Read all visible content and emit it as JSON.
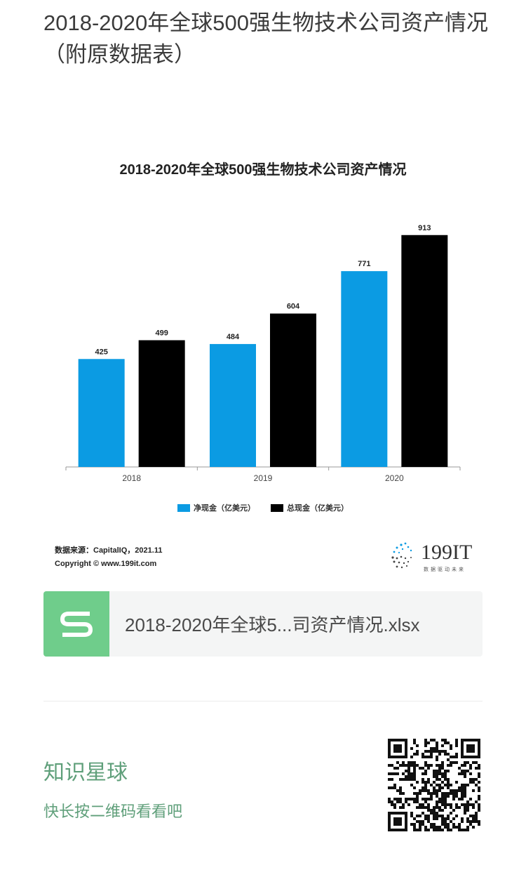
{
  "article": {
    "title": "2018-2020年全球500强生物技术公司资产情况（附原数据表）"
  },
  "chart_data": {
    "type": "bar",
    "title": "2018-2020年全球500强生物技术公司资产情况",
    "categories": [
      "2018",
      "2019",
      "2020"
    ],
    "series": [
      {
        "name": "净现金（亿美元）",
        "values": [
          425,
          484,
          771
        ],
        "color": "#0b9be3"
      },
      {
        "name": "总现金（亿美元）",
        "values": [
          499,
          604,
          913
        ],
        "color": "#000000"
      }
    ],
    "ylim": [
      0,
      940
    ],
    "grid": false,
    "legend_position": "bottom"
  },
  "source": {
    "line1": "数据来源：CapitalIQ，2021.11",
    "line2": "Copyright © www.199it.com"
  },
  "logo": {
    "text": "199IT",
    "tagline": "数据驱动未来"
  },
  "file": {
    "name": "2018-2020年全球5...司资产情况.xlsx"
  },
  "planet": {
    "name": "知识星球",
    "hint": "快长按二维码看看吧"
  },
  "colors": {
    "accent_green": "#6fcd8b",
    "text_green": "#5f9f7a"
  }
}
